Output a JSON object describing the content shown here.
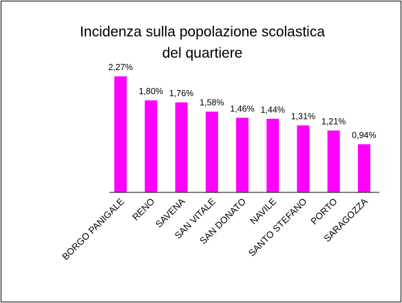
{
  "chart_data": {
    "type": "bar",
    "title": [
      "Incidenza sulla popolazione scolastica",
      "del quartiere"
    ],
    "categories": [
      "BORGO PANIGALE",
      "RENO",
      "SAVENA",
      "SAN VITALE",
      "SAN DONATO",
      "NAVILE",
      "SANTO STEFANO",
      "PORTO",
      "SARAGOZZA"
    ],
    "values": [
      2.27,
      1.8,
      1.76,
      1.58,
      1.46,
      1.44,
      1.31,
      1.21,
      0.94
    ],
    "value_labels": [
      "2,27%",
      "1,80%",
      "1,76%",
      "1,58%",
      "1,46%",
      "1,44%",
      "1,31%",
      "1,21%",
      "0,94%"
    ],
    "color": "#ff00ff",
    "ylim": [
      0,
      2.5
    ]
  }
}
